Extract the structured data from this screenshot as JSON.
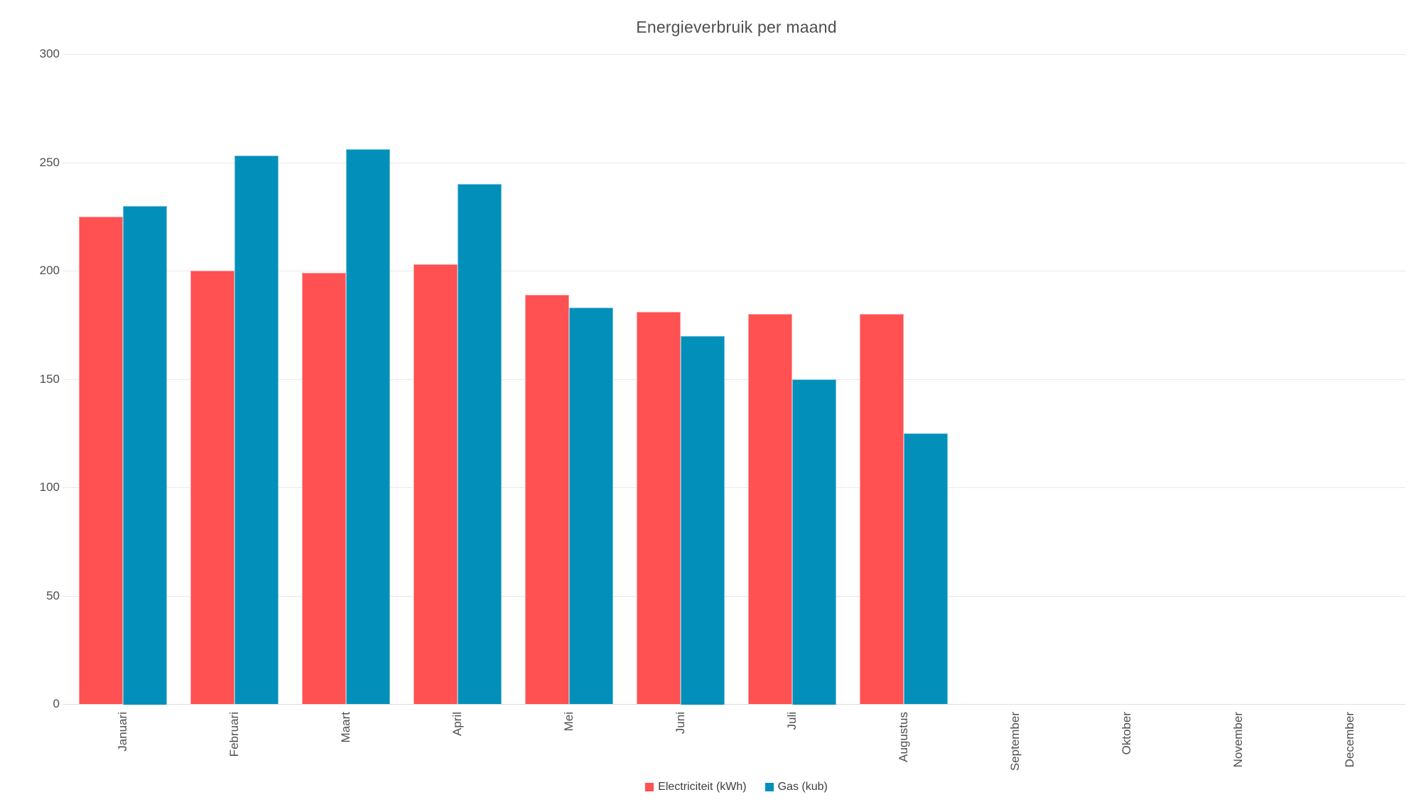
{
  "chart_data": {
    "type": "bar",
    "title": "Energieverbruik per maand",
    "categories": [
      "Januari",
      "Februari",
      "Maart",
      "April",
      "Mei",
      "Juni",
      "Juli",
      "Augustus",
      "September",
      "Oktober",
      "November",
      "December"
    ],
    "series": [
      {
        "name": "Electriciteit (kWh)",
        "color": "#FF5052",
        "values": [
          225,
          200,
          199,
          203,
          189,
          181,
          180,
          180,
          null,
          null,
          null,
          null
        ]
      },
      {
        "name": "Gas (kub)",
        "color": "#0290BB",
        "values": [
          230,
          253,
          256,
          240,
          183,
          170,
          150,
          125,
          null,
          null,
          null,
          null
        ]
      }
    ],
    "xlabel": "",
    "ylabel": "",
    "ylim": [
      0,
      300
    ],
    "yticks": [
      0,
      50,
      100,
      150,
      200,
      250,
      300
    ],
    "grid": true,
    "legend_position": "bottom",
    "background_color": "#ffffff",
    "grid_color": "#e8e8e8",
    "axis_text_color": "#4f4f4f",
    "title_color": "#4e4e4e",
    "legend_text_color": "#3d3d3d"
  }
}
